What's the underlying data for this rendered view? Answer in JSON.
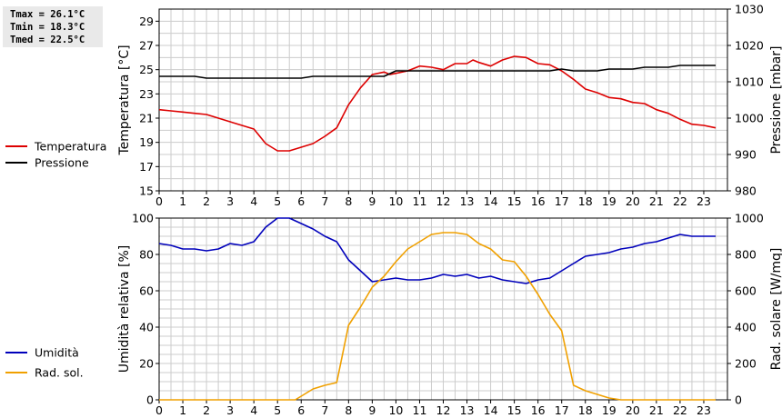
{
  "stats": {
    "tmax": "Tmax = 26.1°C",
    "tmin": "Tmin = 18.3°C",
    "tmed": "Tmed = 22.5°C"
  },
  "colors": {
    "temperatura": "#dd0000",
    "pressione": "#000000",
    "umidita": "#0000bb",
    "radiazione": "#f0a000",
    "grid": "#cccccc"
  },
  "chart_data": [
    {
      "type": "line",
      "grid": true,
      "legend_position": "left",
      "xlabel": "",
      "x_ticks": [
        "0",
        "1",
        "2",
        "3",
        "4",
        "5",
        "6",
        "7",
        "8",
        "9",
        "10",
        "11",
        "12",
        "13",
        "14",
        "15",
        "16",
        "17",
        "18",
        "19",
        "20",
        "21",
        "22",
        "23"
      ],
      "xlim": [
        0,
        24
      ],
      "ylabel_left": "Temperatura [°C]",
      "ylim_left": [
        15,
        30
      ],
      "yticks_left": [
        "15",
        "17",
        "19",
        "21",
        "23",
        "25",
        "27",
        "29"
      ],
      "ylabel_right": "Pressione [mbar]",
      "ylim_right": [
        980,
        1030
      ],
      "yticks_right": [
        "980",
        "990",
        "1000",
        "1010",
        "1020",
        "1030"
      ],
      "series": [
        {
          "name": "Temperatura",
          "axis": "left",
          "x": [
            0,
            0.5,
            1,
            1.5,
            2,
            2.5,
            3,
            3.5,
            4,
            4.5,
            5,
            5.5,
            6,
            6.5,
            7,
            7.5,
            8,
            8.5,
            9,
            9.5,
            9.75,
            10,
            10.5,
            11,
            11.5,
            12,
            12.5,
            13,
            13.25,
            13.5,
            14,
            14.5,
            15,
            15.5,
            16,
            16.5,
            17,
            17.5,
            18,
            18.5,
            19,
            19.5,
            20,
            20.5,
            21,
            21.5,
            22,
            22.5,
            23,
            23.5
          ],
          "values": [
            21.7,
            21.6,
            21.5,
            21.4,
            21.3,
            21.0,
            20.7,
            20.4,
            20.1,
            18.9,
            18.3,
            18.3,
            18.6,
            18.9,
            19.5,
            20.2,
            22.1,
            23.5,
            24.6,
            24.8,
            24.6,
            24.7,
            24.9,
            25.3,
            25.2,
            25.0,
            25.5,
            25.5,
            25.8,
            25.6,
            25.3,
            25.8,
            26.1,
            26.0,
            25.5,
            25.4,
            24.9,
            24.2,
            23.4,
            23.1,
            22.7,
            22.6,
            22.3,
            22.2,
            21.7,
            21.4,
            20.9,
            20.5,
            20.4,
            20.2
          ]
        },
        {
          "name": "Pressione",
          "axis": "right",
          "x": [
            0,
            1.5,
            2,
            6,
            6.5,
            9.5,
            10,
            16.5,
            17,
            17.5,
            18.5,
            19,
            20,
            20.5,
            21.5,
            22,
            23.5
          ],
          "values": [
            1011.5,
            1011.5,
            1011,
            1011,
            1011.5,
            1011.5,
            1013,
            1013,
            1013.5,
            1013,
            1013,
            1013.5,
            1013.5,
            1014,
            1014,
            1014.5,
            1014.5
          ]
        }
      ]
    },
    {
      "type": "line",
      "grid": true,
      "legend_position": "left",
      "xlabel": "",
      "x_ticks": [
        "0",
        "1",
        "2",
        "3",
        "4",
        "5",
        "6",
        "7",
        "8",
        "9",
        "10",
        "11",
        "12",
        "13",
        "14",
        "15",
        "16",
        "17",
        "18",
        "19",
        "20",
        "21",
        "22",
        "23"
      ],
      "xlim": [
        0,
        24
      ],
      "ylabel_left": "Umidità relativa [%]",
      "ylim_left": [
        0,
        100
      ],
      "yticks_left": [
        "0",
        "20",
        "40",
        "60",
        "80",
        "100"
      ],
      "ylabel_right": "Rad. solare [W/mq]",
      "ylim_right": [
        0,
        1000
      ],
      "yticks_right": [
        "0",
        "200",
        "400",
        "600",
        "800",
        "1000"
      ],
      "series": [
        {
          "name": "Umidità",
          "axis": "left",
          "x": [
            0,
            0.5,
            1,
            1.5,
            2,
            2.5,
            3,
            3.5,
            4,
            4.5,
            5,
            5.25,
            5.5,
            6,
            6.5,
            7,
            7.5,
            8,
            8.5,
            9,
            9.5,
            10,
            10.5,
            11,
            11.5,
            12,
            12.5,
            13,
            13.5,
            14,
            14.5,
            15,
            15.5,
            16,
            16.5,
            17,
            17.5,
            18,
            18.5,
            19,
            19.5,
            20,
            20.5,
            21,
            21.5,
            22,
            22.5,
            23,
            23.5
          ],
          "values": [
            86,
            85,
            83,
            83,
            82,
            83,
            86,
            85,
            87,
            95,
            100,
            100,
            100,
            97,
            94,
            90,
            87,
            77,
            71,
            65,
            66,
            67,
            66,
            66,
            67,
            69,
            68,
            69,
            67,
            68,
            66,
            65,
            64,
            66,
            67,
            71,
            75,
            79,
            80,
            81,
            83,
            84,
            86,
            87,
            89,
            91,
            90,
            90,
            90
          ]
        },
        {
          "name": "Rad. sol.",
          "axis": "right",
          "x": [
            0,
            1,
            2,
            3,
            4,
            5,
            5.75,
            6,
            6.5,
            7,
            7.5,
            8,
            8.5,
            9,
            9.5,
            10,
            10.5,
            11,
            11.5,
            12,
            12.5,
            13,
            13.5,
            14,
            14.5,
            15,
            15.5,
            16,
            16.5,
            17,
            17.5,
            18,
            18.5,
            19,
            19.5,
            20,
            21,
            22,
            23,
            23.5
          ],
          "values": [
            0,
            0,
            0,
            0,
            0,
            0,
            0,
            20,
            60,
            80,
            95,
            410,
            510,
            620,
            680,
            760,
            830,
            870,
            910,
            920,
            920,
            910,
            860,
            830,
            770,
            760,
            680,
            580,
            470,
            380,
            80,
            50,
            30,
            10,
            0,
            0,
            0,
            0,
            0,
            0
          ]
        }
      ]
    }
  ]
}
